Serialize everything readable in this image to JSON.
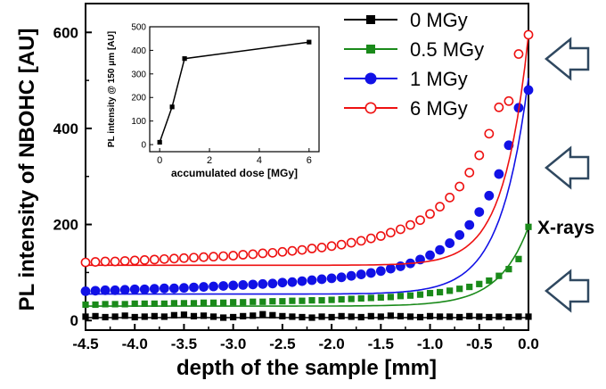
{
  "chart_data": [
    {
      "type": "line",
      "xlabel": "depth of the sample [mm]",
      "ylabel": "PL intensity of NBOHC [AU]",
      "xlim": [
        -4.5,
        0.0
      ],
      "ylim": [
        -20,
        660
      ],
      "xticks": [
        "-4.5",
        "-4.0",
        "-3.5",
        "-3.0",
        "-2.5",
        "-2.0",
        "-1.5",
        "-1.0",
        "-0.5",
        "0.0"
      ],
      "yticks": [
        "0",
        "200",
        "400",
        "600"
      ],
      "legend_position": "top-right",
      "grid": false,
      "series": [
        {
          "name": "0 MGy",
          "color": "#000000",
          "marker": "square-filled",
          "curve": {
            "base": 6,
            "amp": 0,
            "decay": 0.3
          },
          "x": [
            -4.5,
            -4.4,
            -4.3,
            -4.2,
            -4.1,
            -4.0,
            -3.9,
            -3.8,
            -3.7,
            -3.6,
            -3.5,
            -3.4,
            -3.3,
            -3.2,
            -3.1,
            -3.0,
            -2.9,
            -2.8,
            -2.7,
            -2.6,
            -2.5,
            -2.4,
            -2.3,
            -2.2,
            -2.1,
            -2.0,
            -1.9,
            -1.8,
            -1.7,
            -1.6,
            -1.5,
            -1.4,
            -1.3,
            -1.2,
            -1.1,
            -1.0,
            -0.9,
            -0.8,
            -0.7,
            -0.6,
            -0.5,
            -0.4,
            -0.3,
            -0.2,
            -0.1,
            0.0
          ],
          "y": [
            8,
            9,
            7,
            8,
            10,
            7,
            8,
            9,
            8,
            11,
            12,
            9,
            10,
            8,
            6,
            7,
            9,
            10,
            13,
            11,
            9,
            8,
            7,
            6,
            8,
            7,
            9,
            8,
            7,
            9,
            8,
            10,
            9,
            8,
            7,
            9,
            8,
            8,
            7,
            9,
            8,
            7,
            8,
            7,
            8,
            8
          ]
        },
        {
          "name": "0.5 MGy",
          "color": "#1a8a1a",
          "marker": "square-filled",
          "curve": {
            "base": 30,
            "amp": 165,
            "decay": 0.3
          },
          "x": [
            -4.5,
            -4.4,
            -4.3,
            -4.2,
            -4.1,
            -4.0,
            -3.9,
            -3.8,
            -3.7,
            -3.6,
            -3.5,
            -3.4,
            -3.3,
            -3.2,
            -3.1,
            -3.0,
            -2.9,
            -2.8,
            -2.7,
            -2.6,
            -2.5,
            -2.4,
            -2.3,
            -2.2,
            -2.1,
            -2.0,
            -1.9,
            -1.8,
            -1.7,
            -1.6,
            -1.5,
            -1.4,
            -1.3,
            -1.2,
            -1.1,
            -1.0,
            -0.9,
            -0.8,
            -0.7,
            -0.6,
            -0.5,
            -0.4,
            -0.3,
            -0.2,
            -0.1,
            0.0
          ],
          "y": [
            33,
            33,
            34,
            34,
            34,
            35,
            35,
            35,
            35,
            36,
            36,
            36,
            37,
            37,
            37,
            38,
            38,
            39,
            39,
            40,
            40,
            41,
            41,
            42,
            42,
            43,
            44,
            45,
            46,
            47,
            48,
            49,
            51,
            52,
            54,
            57,
            59,
            62,
            66,
            70,
            76,
            83,
            93,
            107,
            128,
            195
          ]
        },
        {
          "name": "1 MGy",
          "color": "#1111e6",
          "marker": "circle-filled",
          "curve": {
            "base": 55,
            "amp": 450,
            "decay": 0.28
          },
          "x": [
            -4.5,
            -4.4,
            -4.3,
            -4.2,
            -4.1,
            -4.0,
            -3.9,
            -3.8,
            -3.7,
            -3.6,
            -3.5,
            -3.4,
            -3.3,
            -3.2,
            -3.1,
            -3.0,
            -2.9,
            -2.8,
            -2.7,
            -2.6,
            -2.5,
            -2.4,
            -2.3,
            -2.2,
            -2.1,
            -2.0,
            -1.9,
            -1.8,
            -1.7,
            -1.6,
            -1.5,
            -1.4,
            -1.3,
            -1.2,
            -1.1,
            -1.0,
            -0.9,
            -0.8,
            -0.7,
            -0.6,
            -0.5,
            -0.4,
            -0.3,
            -0.2,
            -0.1,
            0.0
          ],
          "y": [
            61,
            62,
            63,
            63,
            64,
            65,
            65,
            66,
            67,
            67,
            68,
            69,
            70,
            71,
            72,
            73,
            74,
            75,
            76,
            77,
            79,
            80,
            82,
            84,
            86,
            88,
            90,
            93,
            96,
            99,
            103,
            108,
            113,
            119,
            127,
            136,
            147,
            161,
            178,
            199,
            226,
            260,
            305,
            365,
            443,
            480
          ]
        },
        {
          "name": "6 MGy",
          "color": "#ee1111",
          "marker": "circle-open",
          "curve": {
            "base": 115,
            "amp": 480,
            "decay": 0.25
          },
          "x": [
            -4.5,
            -4.4,
            -4.3,
            -4.2,
            -4.1,
            -4.0,
            -3.9,
            -3.8,
            -3.7,
            -3.6,
            -3.5,
            -3.4,
            -3.3,
            -3.2,
            -3.1,
            -3.0,
            -2.9,
            -2.8,
            -2.7,
            -2.6,
            -2.5,
            -2.4,
            -2.3,
            -2.2,
            -2.1,
            -2.0,
            -1.9,
            -1.8,
            -1.7,
            -1.6,
            -1.5,
            -1.4,
            -1.3,
            -1.2,
            -1.1,
            -1.0,
            -0.9,
            -0.8,
            -0.7,
            -0.6,
            -0.5,
            -0.4,
            -0.3,
            -0.2,
            -0.1,
            0.0
          ],
          "y": [
            121,
            122,
            123,
            123,
            124,
            125,
            126,
            127,
            128,
            129,
            130,
            131,
            132,
            133,
            134,
            135,
            137,
            138,
            140,
            141,
            143,
            145,
            147,
            150,
            152,
            155,
            158,
            162,
            166,
            171,
            176,
            183,
            190,
            199,
            209,
            222,
            237,
            256,
            279,
            308,
            344,
            389,
            444,
            457,
            555,
            595
          ]
        }
      ]
    },
    {
      "type": "line",
      "xlabel": "accumulated dose [MGy]",
      "ylabel": "PL intensity @ 150 μm [AU]",
      "xlim": [
        -0.4,
        6.4
      ],
      "ylim": [
        -30,
        500
      ],
      "xticks": [
        "0",
        "2",
        "4",
        "6"
      ],
      "yticks": [
        "0",
        "100",
        "200",
        "300",
        "400",
        "500"
      ],
      "grid": false,
      "series": [
        {
          "color": "#000000",
          "marker": "square-filled",
          "x": [
            0,
            0.5,
            1,
            6
          ],
          "y": [
            10,
            160,
            365,
            435
          ]
        }
      ]
    }
  ],
  "annotations": {
    "label": "X-rays",
    "arrow_color": "#2f4860",
    "arrow_icon": "hollow-left-arrow"
  }
}
